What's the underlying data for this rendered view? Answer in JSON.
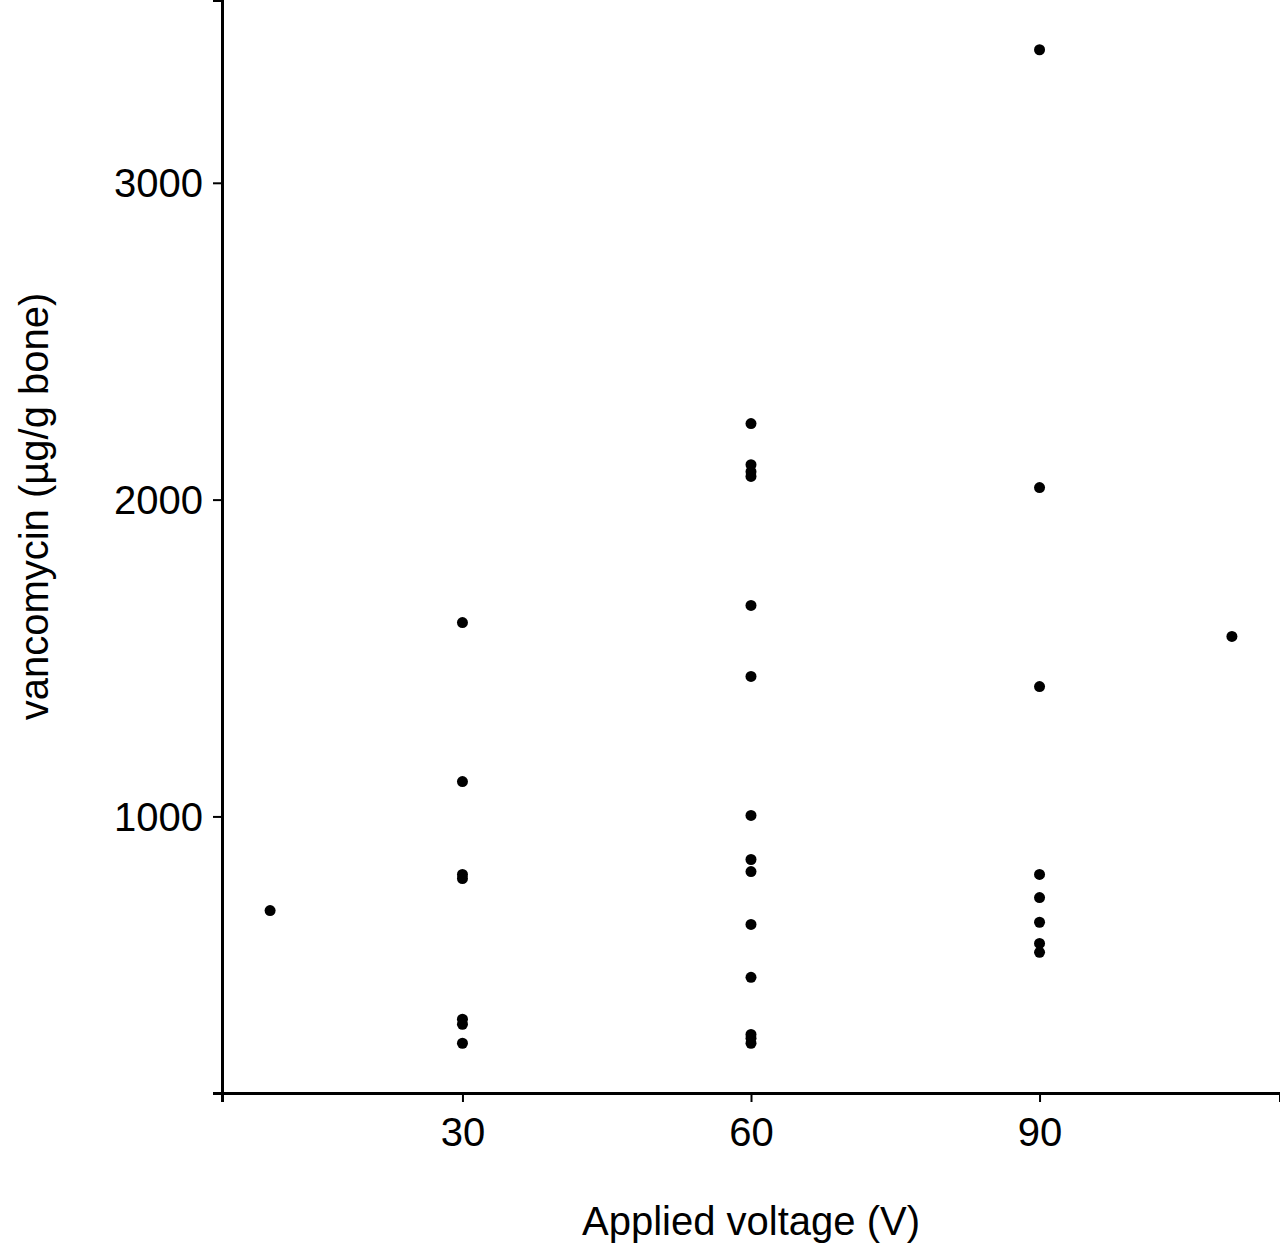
{
  "chart_data": {
    "type": "scatter",
    "x_label": "Applied voltage (V)",
    "y_label": "vancomycin (µg/g bone)",
    "x": [
      10,
      30,
      30,
      30,
      30,
      30,
      30,
      30,
      60,
      60,
      60,
      60,
      60,
      60,
      60,
      60,
      60,
      60,
      60,
      60,
      60,
      60,
      90,
      90,
      90,
      90,
      90,
      90,
      90,
      90,
      110
    ],
    "values": [
      703,
      1612,
      1110,
      817,
      804,
      360,
      344,
      284,
      2240,
      2110,
      2088,
      2073,
      1666,
      1442,
      1003,
      864,
      826,
      659,
      492,
      312,
      300,
      284,
      3420,
      2038,
      1410,
      817,
      744,
      666,
      599,
      571,
      1568
    ],
    "color": "#000000",
    "marker": "circle",
    "xlim": [
      5,
      115
    ],
    "ylim": [
      127,
      3577
    ],
    "xticks": [
      30,
      60,
      90
    ],
    "yticks": [
      1000,
      2000,
      3000
    ],
    "grid": false
  }
}
